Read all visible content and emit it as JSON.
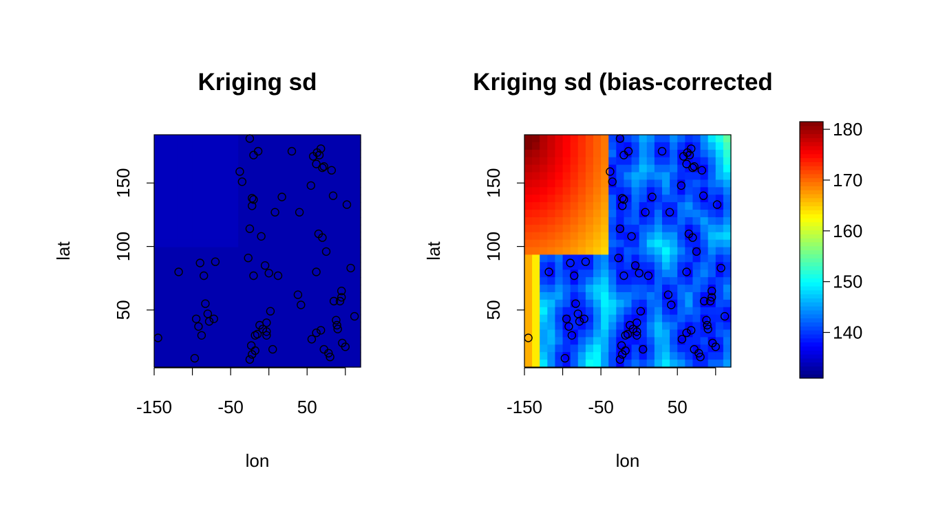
{
  "chart_data": [
    {
      "type": "heatmap",
      "title": "Kriging sd",
      "xlabel": "lon",
      "ylabel": "lat",
      "xlim": [
        -150,
        120
      ],
      "ylim": [
        5,
        188
      ],
      "x_ticks": [
        -150,
        -50,
        50
      ],
      "x_ticks_minor": [
        -150,
        -100,
        -50,
        0,
        50,
        100
      ],
      "y_ticks": [
        50,
        100,
        150
      ],
      "y_ticks_minor": [
        50,
        100,
        150
      ],
      "grid": false,
      "value_range_approx": [
        131,
        135
      ],
      "field_description_values": {
        "low_region": 131.5,
        "high_region": 133.5
      }
    },
    {
      "type": "heatmap",
      "title": "Kriging sd (bias-corrected",
      "xlabel": "lon",
      "ylabel": "lat",
      "xlim": [
        -150,
        120
      ],
      "ylim": [
        5,
        188
      ],
      "x_ticks": [
        -150,
        -50,
        50
      ],
      "x_ticks_minor": [
        -150,
        -100,
        -50,
        0,
        50,
        100
      ],
      "y_ticks": [
        50,
        100,
        150
      ],
      "y_ticks_minor": [
        50,
        100,
        150
      ],
      "grid": false
    }
  ],
  "colorbar": {
    "ticks": [
      140,
      150,
      160,
      170,
      180
    ],
    "range": [
      131,
      181.5
    ],
    "colormap": "jet",
    "colors": [
      "#00007F",
      "#0000FF",
      "#007FFF",
      "#00FFFF",
      "#7FFF7F",
      "#FFFF00",
      "#FF7F00",
      "#FF0000",
      "#7F0000"
    ]
  },
  "points": [
    [
      -145,
      28
    ],
    [
      -97,
      12
    ],
    [
      -95,
      43
    ],
    [
      -90,
      87
    ],
    [
      -118,
      80
    ],
    [
      -85,
      77
    ],
    [
      -92,
      37
    ],
    [
      -88,
      30
    ],
    [
      -83,
      55
    ],
    [
      -80,
      47
    ],
    [
      -78,
      41
    ],
    [
      -72,
      43
    ],
    [
      -70,
      88
    ],
    [
      -38,
      159
    ],
    [
      -35,
      151
    ],
    [
      -25,
      185
    ],
    [
      -22,
      138
    ],
    [
      -22,
      132
    ],
    [
      -20,
      137
    ],
    [
      -20,
      172
    ],
    [
      -25,
      114
    ],
    [
      -27,
      91
    ],
    [
      -20,
      77
    ],
    [
      -14,
      175
    ],
    [
      -10,
      108
    ],
    [
      -15,
      31
    ],
    [
      -18,
      30
    ],
    [
      -23,
      22
    ],
    [
      -22,
      15
    ],
    [
      -18,
      18
    ],
    [
      -25,
      11
    ],
    [
      -12,
      38
    ],
    [
      -8,
      35
    ],
    [
      -5,
      85
    ],
    [
      -3,
      40
    ],
    [
      -3,
      33
    ],
    [
      -3,
      30
    ],
    [
      0,
      79
    ],
    [
      2,
      49
    ],
    [
      5,
      19
    ],
    [
      8,
      127
    ],
    [
      12,
      77
    ],
    [
      17,
      139
    ],
    [
      30,
      175
    ],
    [
      38,
      62
    ],
    [
      42,
      54
    ],
    [
      40,
      127
    ],
    [
      55,
      148
    ],
    [
      58,
      171
    ],
    [
      62,
      165
    ],
    [
      63,
      174
    ],
    [
      66,
      172
    ],
    [
      68,
      177
    ],
    [
      70,
      162
    ],
    [
      72,
      163
    ],
    [
      65,
      110
    ],
    [
      70,
      107
    ],
    [
      75,
      96
    ],
    [
      82,
      160
    ],
    [
      84,
      140
    ],
    [
      62,
      80
    ],
    [
      56,
      27
    ],
    [
      62,
      32
    ],
    [
      68,
      34
    ],
    [
      72,
      19
    ],
    [
      78,
      16
    ],
    [
      80,
      13
    ],
    [
      85,
      57
    ],
    [
      88,
      42
    ],
    [
      89,
      38
    ],
    [
      90,
      35
    ],
    [
      93,
      57
    ],
    [
      95,
      60
    ],
    [
      95,
      65
    ],
    [
      96,
      24
    ],
    [
      100,
      21
    ],
    [
      102,
      133
    ],
    [
      107,
      83
    ],
    [
      112,
      45
    ]
  ]
}
